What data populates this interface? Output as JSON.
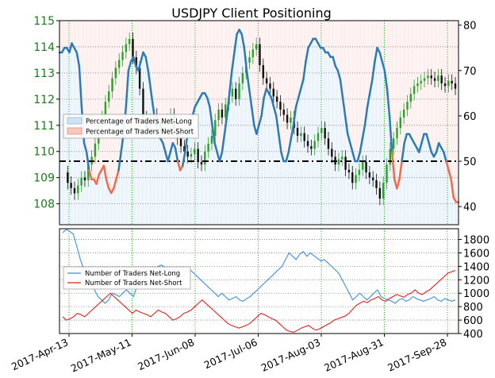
{
  "chart_data": [
    {
      "type": "line",
      "title": "USDJPY Client Positioning",
      "left_axis": {
        "ticks": [
          "115",
          "114",
          "113",
          "112",
          "111",
          "110",
          "109",
          "108"
        ],
        "ylim": [
          107.2,
          115
        ],
        "color": "#1a7a1a"
      },
      "right_axis": {
        "ticks": [
          "80",
          "70",
          "60",
          "50",
          "40"
        ],
        "ylim": [
          36,
          81
        ]
      },
      "x_ticks": [
        "2017-Apr-13",
        "2017-May-11",
        "2017-Jun-08",
        "2017-Jul-06",
        "2017-Aug-03",
        "2017-Aug-31",
        "2017-Sep-28"
      ],
      "legend": [
        "Percentage of Traders Net-Long",
        "Percentage of Traders Net-Short"
      ],
      "legend_position": "middle-left",
      "reference_line": 50,
      "grid": true,
      "colors": {
        "net_long": "#2c7bb6",
        "net_short": "#f26a4f",
        "candle_up": "#2ca02c",
        "candle_down": "#111111",
        "reference": "#000000"
      },
      "percent_long": [
        74,
        74,
        75,
        75,
        74,
        76,
        75,
        74,
        71,
        62,
        54,
        52,
        48,
        46,
        46,
        45,
        47,
        48,
        49,
        46,
        44,
        43,
        44,
        46,
        48,
        52,
        56,
        62,
        70,
        72,
        73,
        71,
        70,
        72,
        74,
        73,
        70,
        66,
        62,
        58,
        56,
        55,
        54,
        52,
        50,
        52,
        54,
        53,
        50,
        48,
        49,
        52,
        56,
        58,
        60,
        62,
        63,
        64,
        65,
        65,
        64,
        62,
        58,
        54,
        52,
        50,
        52,
        56,
        60,
        65,
        70,
        74,
        78,
        79,
        78,
        75,
        70,
        66,
        62,
        58,
        56,
        58,
        60,
        64,
        66,
        65,
        64,
        62,
        60,
        56,
        52,
        50,
        50,
        52,
        55,
        58,
        62,
        64,
        66,
        68,
        72,
        75,
        76,
        77,
        77,
        76,
        75,
        75,
        74,
        74,
        73,
        73,
        71,
        70,
        68,
        64,
        60,
        56,
        54,
        52,
        50,
        50,
        52,
        55,
        58,
        62,
        65,
        68,
        72,
        75,
        74,
        72,
        70,
        66,
        60,
        52,
        46,
        44,
        46,
        50,
        54,
        56,
        56,
        55,
        54,
        53,
        52,
        54,
        56,
        56,
        54,
        52,
        51,
        52,
        54,
        53,
        52,
        50,
        48,
        46,
        42,
        41,
        41
      ],
      "ohlc_approx_close": [
        109.2,
        108.8,
        108.6,
        108.4,
        108.7,
        109.0,
        108.9,
        109.5,
        109.8,
        110.3,
        110.9,
        111.3,
        111.9,
        112.3,
        112.8,
        113.2,
        113.5,
        113.8,
        114.1,
        114.3,
        113.6,
        113.2,
        112.4,
        111.3,
        110.9,
        111.2,
        111.4,
        111.1,
        110.8,
        111.0,
        111.2,
        111.4,
        110.8,
        110.5,
        110.2,
        110.0,
        109.8,
        109.9,
        110.1,
        109.6,
        109.5,
        110.0,
        110.3,
        110.6,
        111.2,
        111.6,
        111.3,
        111.8,
        112.1,
        112.4,
        112.0,
        112.6,
        113.0,
        113.4,
        113.6,
        113.9,
        114.1,
        113.3,
        112.8,
        112.6,
        112.4,
        112.1,
        111.9,
        111.6,
        111.4,
        111.1,
        111.3,
        110.9,
        110.6,
        110.7,
        110.4,
        110.2,
        110.1,
        110.4,
        110.7,
        110.9,
        110.5,
        110.1,
        109.8,
        109.5,
        109.7,
        109.8,
        109.3,
        109.2,
        108.8,
        109.1,
        109.3,
        109.6,
        109.2,
        109.0,
        108.9,
        108.6,
        108.2,
        108.8,
        109.5,
        110.1,
        110.5,
        110.9,
        111.3,
        111.6,
        111.9,
        112.2,
        112.5,
        112.6,
        112.7,
        112.8,
        112.9,
        112.8,
        112.7,
        112.9,
        112.6,
        112.5,
        112.7,
        112.6,
        112.4
      ]
    },
    {
      "type": "line",
      "legend": [
        "Number of Traders Net-Long",
        "Number of Traders Net-Short"
      ],
      "legend_position": "upper-left",
      "right_axis": {
        "ticks": [
          "1800",
          "1600",
          "1400",
          "1200",
          "1000",
          "800",
          "600",
          "400"
        ],
        "ylim": [
          400,
          1960
        ]
      },
      "grid": true,
      "colors": {
        "net_long": "#3d8fd9",
        "net_short": "#e0201b"
      },
      "traders_long": [
        1900,
        1950,
        1920,
        1880,
        1700,
        1500,
        1350,
        1250,
        1150,
        1050,
        950,
        900,
        850,
        900,
        1000,
        980,
        950,
        1000,
        1050,
        1000,
        950,
        1100,
        1150,
        1200,
        1250,
        1300,
        1350,
        1400,
        1420,
        1380,
        1350,
        1300,
        1320,
        1280,
        1250,
        1300,
        1350,
        1300,
        1250,
        1200,
        1150,
        1100,
        1050,
        1000,
        950,
        1000,
        950,
        900,
        920,
        950,
        900,
        880,
        920,
        950,
        1000,
        1050,
        1100,
        1150,
        1200,
        1250,
        1300,
        1350,
        1400,
        1500,
        1600,
        1550,
        1500,
        1580,
        1620,
        1550,
        1600,
        1560,
        1520,
        1480,
        1500,
        1450,
        1400,
        1350,
        1300,
        1200,
        1100,
        1000,
        900,
        950,
        1000,
        950,
        900,
        950,
        1000,
        1050,
        950,
        920,
        900,
        880,
        850,
        900,
        920,
        880,
        900,
        950,
        920,
        900,
        880,
        900,
        920,
        950,
        900,
        880,
        920,
        900,
        880,
        900
      ],
      "traders_short": [
        650,
        600,
        620,
        650,
        700,
        680,
        650,
        700,
        750,
        800,
        850,
        900,
        950,
        1000,
        950,
        900,
        850,
        800,
        750,
        700,
        750,
        720,
        700,
        680,
        650,
        700,
        750,
        720,
        700,
        650,
        600,
        620,
        650,
        700,
        720,
        750,
        800,
        850,
        900,
        850,
        800,
        750,
        700,
        650,
        600,
        550,
        520,
        500,
        480,
        500,
        520,
        550,
        600,
        650,
        700,
        680,
        650,
        620,
        600,
        550,
        500,
        450,
        430,
        420,
        450,
        480,
        500,
        520,
        480,
        450,
        470,
        500,
        530,
        560,
        600,
        620,
        640,
        660,
        700,
        760,
        820,
        850,
        880,
        860,
        900,
        920,
        950,
        900,
        880,
        920,
        950,
        980,
        960,
        940,
        980,
        1000,
        1050,
        1000,
        980,
        1020,
        1050,
        1100,
        1150,
        1200,
        1250,
        1300,
        1320,
        1340
      ]
    }
  ]
}
